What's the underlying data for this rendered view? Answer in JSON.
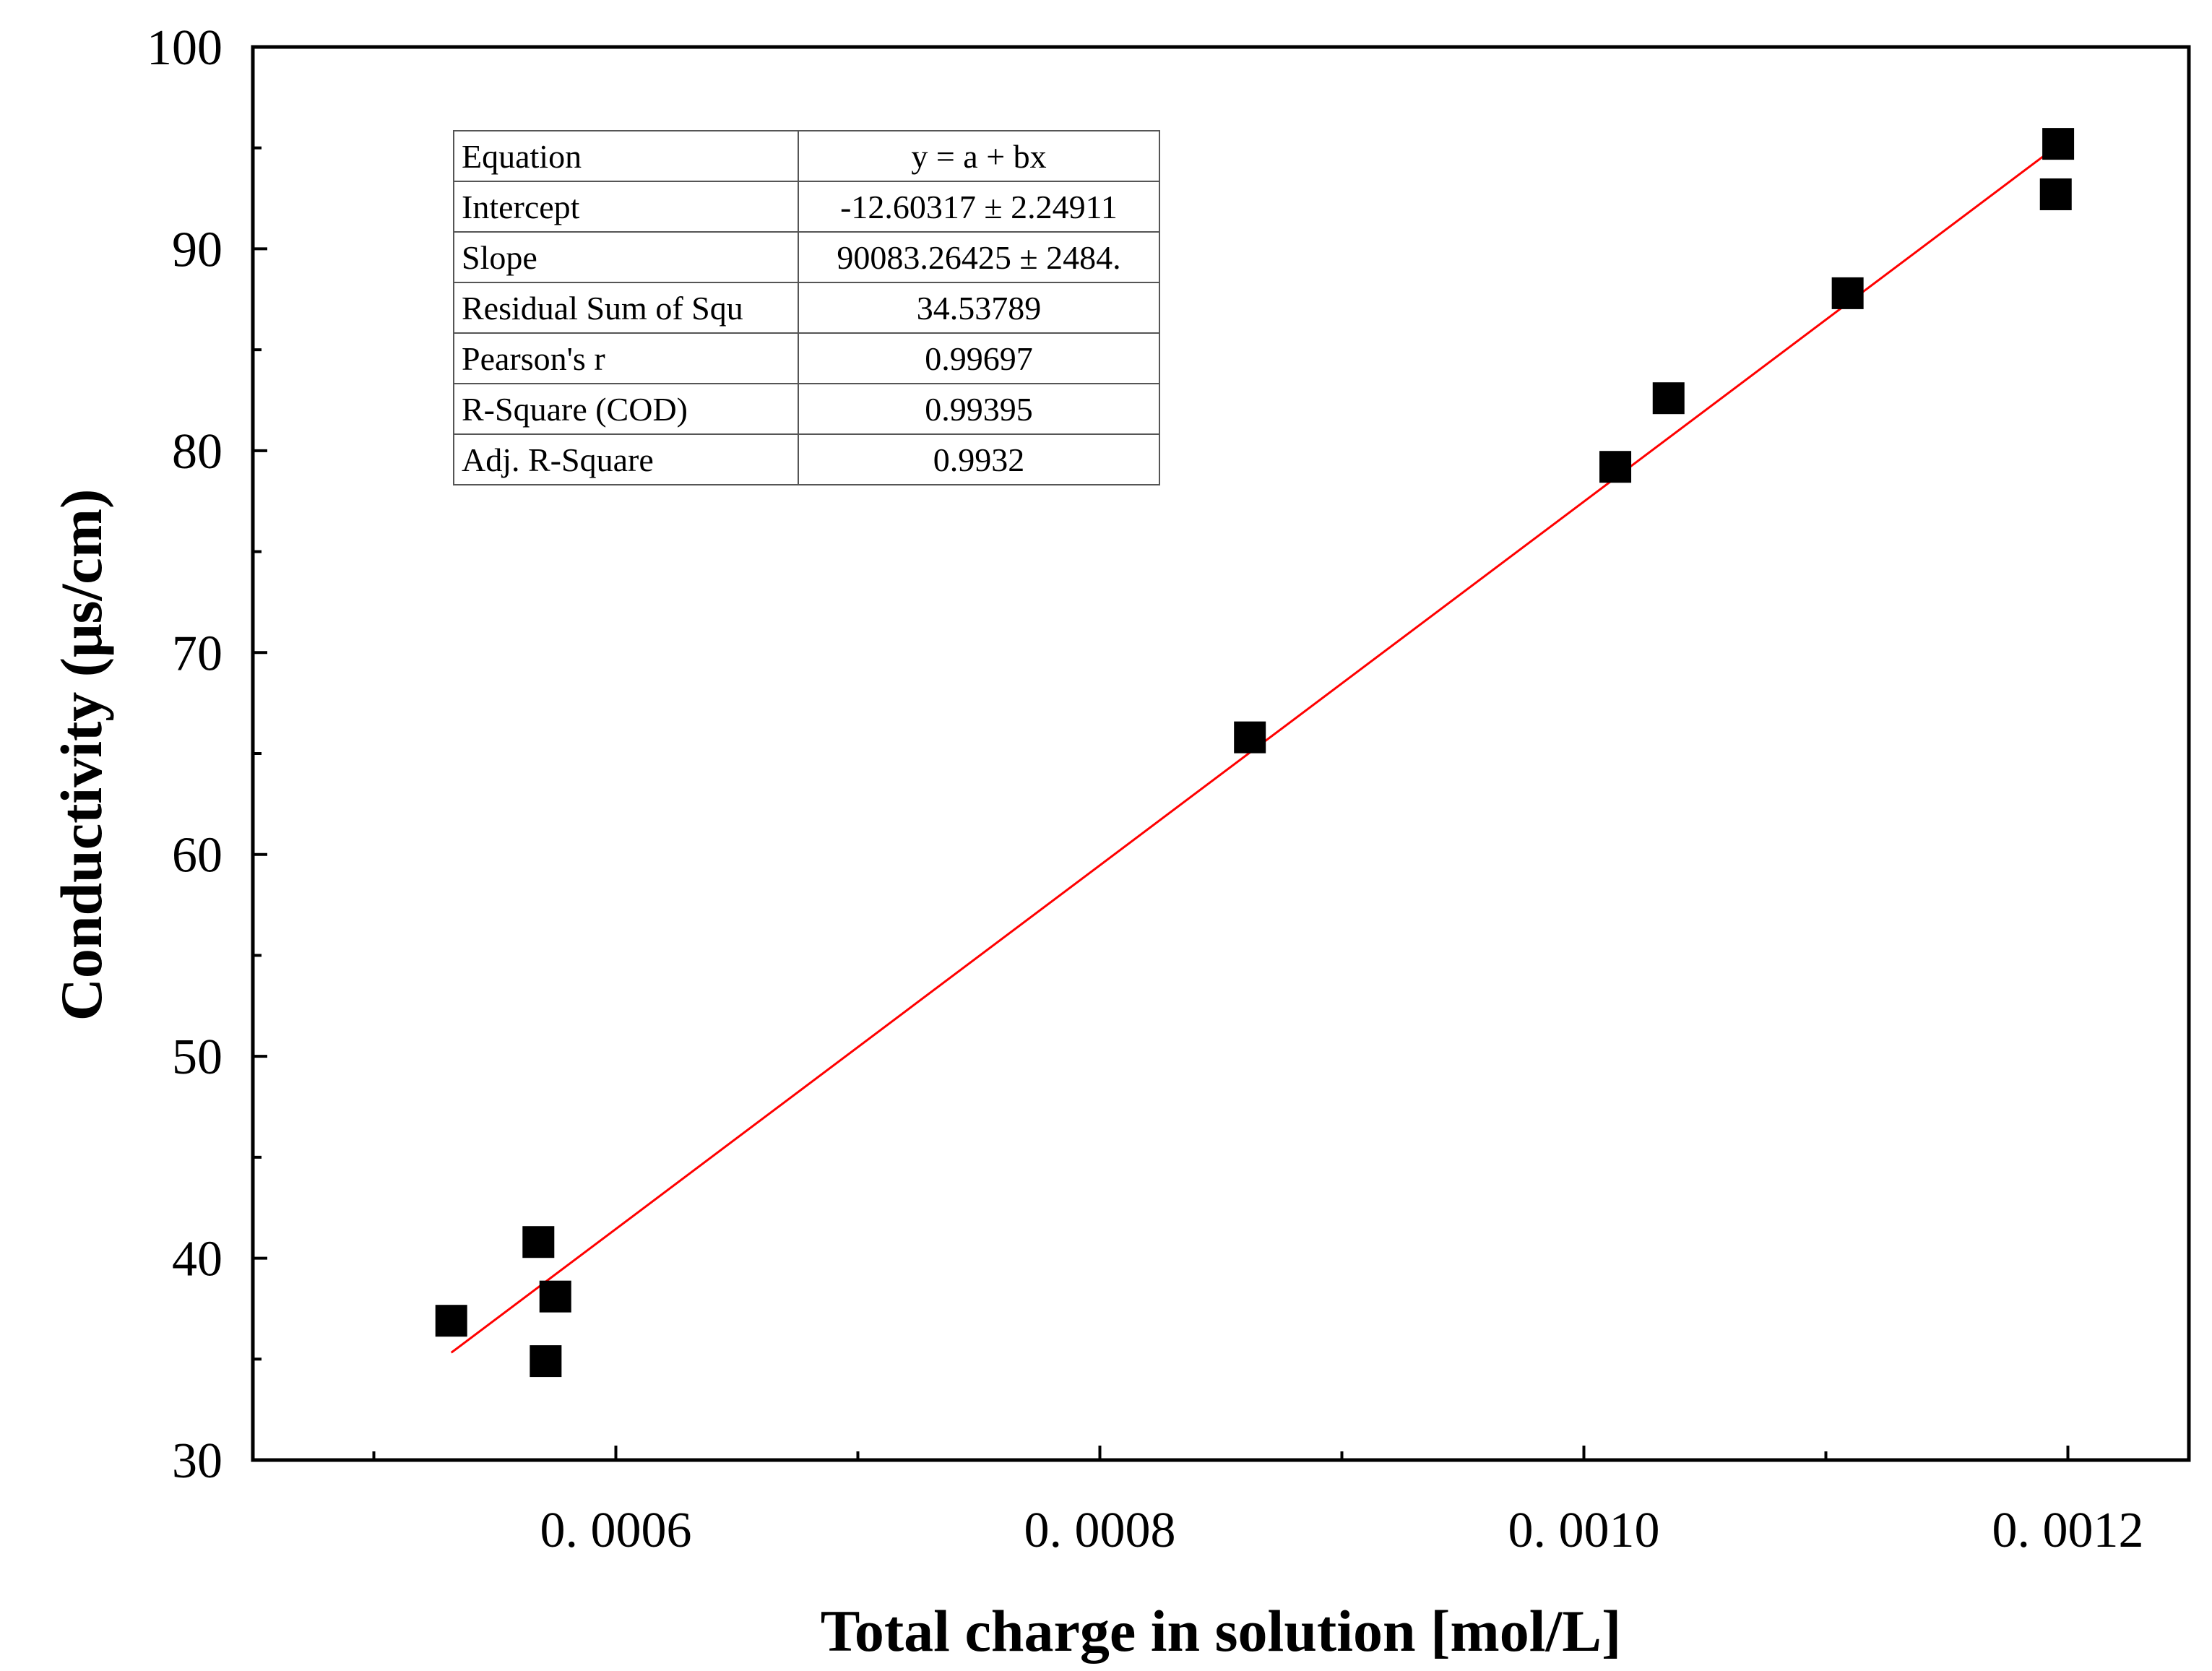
{
  "chart_data": {
    "type": "scatter",
    "title": "",
    "xlabel": "Total charge in solution [mol/L]",
    "ylabel": "Conductivity (μs/cm)",
    "xlim": [
      0.00045,
      0.00125
    ],
    "ylim": [
      30,
      100
    ],
    "x_ticks": [
      {
        "value": 0.0006,
        "label": "0. 0006"
      },
      {
        "value": 0.0008,
        "label": "0. 0008"
      },
      {
        "value": 0.001,
        "label": "0. 0010"
      },
      {
        "value": 0.0012,
        "label": "0. 0012"
      }
    ],
    "x_minor_ticks": [
      0.0005,
      0.0007,
      0.0009,
      0.0011
    ],
    "y_ticks": [
      30,
      40,
      50,
      60,
      70,
      80,
      90,
      100
    ],
    "y_minor_ticks": [
      35,
      45,
      55,
      65,
      75,
      85,
      95
    ],
    "grid": false,
    "series": [
      {
        "name": "Conductivity",
        "marker": "square",
        "color": "#000000",
        "points": [
          {
            "x": 0.000532,
            "y": 36.9
          },
          {
            "x": 0.000568,
            "y": 40.8
          },
          {
            "x": 0.000571,
            "y": 34.9
          },
          {
            "x": 0.000575,
            "y": 38.1
          },
          {
            "x": 0.000862,
            "y": 65.8
          },
          {
            "x": 0.001013,
            "y": 79.2
          },
          {
            "x": 0.001035,
            "y": 82.6
          },
          {
            "x": 0.001109,
            "y": 87.8
          },
          {
            "x": 0.001195,
            "y": 92.7
          },
          {
            "x": 0.001196,
            "y": 95.2
          }
        ]
      }
    ],
    "fit": {
      "type": "linear",
      "color": "#ff0000",
      "intercept": -12.60317,
      "slope": 90083.26425,
      "x_range": [
        0.000532,
        0.001196
      ]
    },
    "fit_table": [
      {
        "key": "Equation",
        "value": "y = a + bx"
      },
      {
        "key": "Intercept",
        "value": "-12.60317 ± 2.24911"
      },
      {
        "key": "Slope",
        "value": "90083.26425 ± 2484."
      },
      {
        "key": "Residual Sum of Squ",
        "value": "34.53789"
      },
      {
        "key": "Pearson's r",
        "value": "0.99697"
      },
      {
        "key": "R-Square (COD)",
        "value": "0.99395"
      },
      {
        "key": "Adj. R-Square",
        "value": "0.9932"
      }
    ]
  }
}
